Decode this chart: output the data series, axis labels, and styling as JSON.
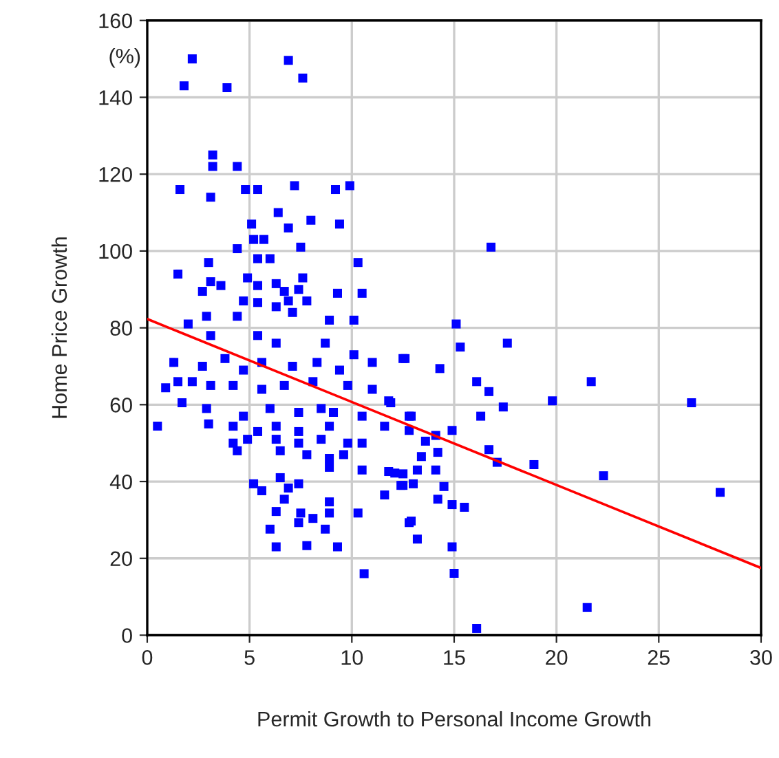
{
  "chart_data": {
    "type": "scatter",
    "xlabel": "Permit Growth to Personal Income Growth",
    "ylabel": "Home Price Growth",
    "annotations": [
      "(%)"
    ],
    "xlim": [
      0,
      30
    ],
    "ylim": [
      0,
      160
    ],
    "xticks": [
      0,
      5,
      10,
      15,
      20,
      25,
      30
    ],
    "yticks": [
      0,
      20,
      40,
      60,
      80,
      100,
      120,
      140,
      160
    ],
    "grid": true,
    "series": [
      {
        "marker": "square",
        "color": "#0000ff",
        "x": [
          2.2,
          1.8,
          3.9,
          6.9,
          7.6,
          3.2,
          3.2,
          4.4,
          1.6,
          3.1,
          4.8,
          5.4,
          7.2,
          9.2,
          9.9,
          6.4,
          8.0,
          5.1,
          6.9,
          9.4,
          5.2,
          5.7,
          4.4,
          7.5,
          5.4,
          6.0,
          10.3,
          3.0,
          1.5,
          4.9,
          3.1,
          3.6,
          5.4,
          6.3,
          7.6,
          2.7,
          6.7,
          7.4,
          9.3,
          10.5,
          4.7,
          5.4,
          6.3,
          6.9,
          7.8,
          2.9,
          2.0,
          4.4,
          7.1,
          8.9,
          10.1,
          3.1,
          5.4,
          6.3,
          8.7,
          10.1,
          11.0,
          12.5,
          1.3,
          2.7,
          3.8,
          4.7,
          5.6,
          7.1,
          8.3,
          9.4,
          1.5,
          0.9,
          2.2,
          3.1,
          4.2,
          5.6,
          6.7,
          8.1,
          9.8,
          11.0,
          1.7,
          2.9,
          4.7,
          6.0,
          7.4,
          8.5,
          9.1,
          10.5,
          11.8,
          12.8,
          0.5,
          3.0,
          4.2,
          5.4,
          6.3,
          7.4,
          8.9,
          11.6,
          4.2,
          4.9,
          6.3,
          7.4,
          8.5,
          9.8,
          10.5,
          4.4,
          6.5,
          7.8,
          8.9,
          9.6,
          8.9,
          10.5,
          11.8,
          12.5,
          5.2,
          6.5,
          7.4,
          5.6,
          6.9,
          12.5,
          11.6,
          6.7,
          8.9,
          6.3,
          8.9,
          10.3,
          7.5,
          8.1,
          12.8,
          6.0,
          7.4,
          8.7,
          6.3,
          7.8,
          9.3,
          10.6,
          16.8,
          15.1,
          15.3,
          17.6,
          12.6,
          14.3,
          16.1,
          16.7,
          21.7,
          17.4,
          19.8,
          26.6,
          11.9,
          16.3,
          12.9,
          12.8,
          14.9,
          14.1,
          13.6,
          16.7,
          13.4,
          14.2,
          17.1,
          18.9,
          13.2,
          14.1,
          22.3,
          12.1,
          12.4,
          13.0,
          14.5,
          14.2,
          14.9,
          15.5,
          28.0,
          12.9,
          13.2,
          14.9,
          15.0,
          21.5,
          16.1
        ],
        "values": [
          150,
          143,
          142.5,
          149.6,
          145,
          125,
          122,
          122,
          116,
          114,
          116,
          116,
          117,
          116,
          117,
          110,
          108,
          107,
          106,
          107,
          103,
          103,
          100.6,
          101,
          98,
          98,
          97,
          97,
          94,
          93,
          92,
          91,
          91,
          91.5,
          93,
          89.5,
          89.5,
          90,
          89,
          89,
          87,
          86.6,
          85.5,
          87,
          87,
          83,
          81,
          83,
          84,
          82,
          82,
          78,
          78,
          76,
          76,
          73,
          71,
          72,
          71,
          70,
          72,
          69,
          71,
          70,
          71,
          69,
          66,
          64.4,
          66,
          65,
          65,
          64,
          65,
          66,
          65,
          64,
          60.5,
          59,
          57,
          59,
          58,
          59,
          58,
          57,
          61,
          57,
          54.4,
          55,
          54.4,
          53,
          54.4,
          53,
          54.4,
          54.4,
          50,
          51,
          51,
          50,
          51,
          50,
          50,
          48,
          48,
          47,
          46,
          47,
          43.7,
          43,
          42.6,
          42,
          39.4,
          41,
          39.4,
          37.6,
          38.3,
          39,
          36.5,
          35.4,
          34.7,
          32.2,
          31.8,
          31.8,
          31.8,
          30.4,
          29.3,
          27.6,
          29.3,
          27.6,
          23,
          23.3,
          23,
          16,
          101,
          81,
          75,
          76,
          72,
          69.4,
          66,
          63.4,
          66,
          59.4,
          61,
          60.5,
          60.5,
          57,
          57,
          53.3,
          53.3,
          52,
          50.5,
          48.3,
          46.5,
          47.6,
          45,
          44.4,
          43,
          43,
          41.5,
          42.2,
          39,
          39.4,
          38.7,
          35.4,
          34,
          33.3,
          37.2,
          29.7,
          25,
          23,
          16.1,
          7.2,
          1.8
        ]
      },
      {
        "type": "line",
        "color": "#ff0000",
        "x": [
          0,
          30
        ],
        "values": [
          82.3,
          17.5
        ]
      }
    ]
  }
}
